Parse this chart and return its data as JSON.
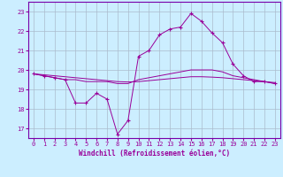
{
  "xlabel": "Windchill (Refroidissement éolien,°C)",
  "bg_color": "#cceeff",
  "line_color": "#990099",
  "grid_color": "#aabbcc",
  "spine_color": "#7700aa",
  "x_hours": [
    0,
    1,
    2,
    3,
    4,
    5,
    6,
    7,
    8,
    9,
    10,
    11,
    12,
    13,
    14,
    15,
    16,
    17,
    18,
    19,
    20,
    21,
    22,
    23
  ],
  "line1": [
    19.8,
    19.7,
    19.6,
    19.5,
    18.3,
    18.3,
    18.8,
    18.5,
    16.7,
    17.4,
    20.7,
    21.0,
    21.8,
    22.1,
    22.2,
    22.9,
    22.5,
    21.9,
    21.4,
    20.3,
    19.7,
    19.4,
    19.4,
    19.3
  ],
  "line2": [
    19.8,
    19.7,
    19.6,
    19.5,
    19.5,
    19.4,
    19.4,
    19.4,
    19.3,
    19.3,
    19.5,
    19.6,
    19.7,
    19.8,
    19.9,
    20.0,
    20.0,
    20.0,
    19.9,
    19.7,
    19.6,
    19.5,
    19.4,
    19.3
  ],
  "line3": [
    19.8,
    19.75,
    19.7,
    19.65,
    19.6,
    19.55,
    19.5,
    19.45,
    19.4,
    19.38,
    19.4,
    19.45,
    19.5,
    19.55,
    19.6,
    19.65,
    19.65,
    19.63,
    19.6,
    19.55,
    19.5,
    19.45,
    19.4,
    19.35
  ],
  "ylim": [
    16.5,
    23.5
  ],
  "yticks": [
    17,
    18,
    19,
    20,
    21,
    22,
    23
  ],
  "xlim": [
    -0.5,
    23.5
  ],
  "xticks": [
    0,
    1,
    2,
    3,
    4,
    5,
    6,
    7,
    8,
    9,
    10,
    11,
    12,
    13,
    14,
    15,
    16,
    17,
    18,
    19,
    20,
    21,
    22,
    23
  ],
  "tick_fontsize": 5.0,
  "xlabel_fontsize": 5.5
}
